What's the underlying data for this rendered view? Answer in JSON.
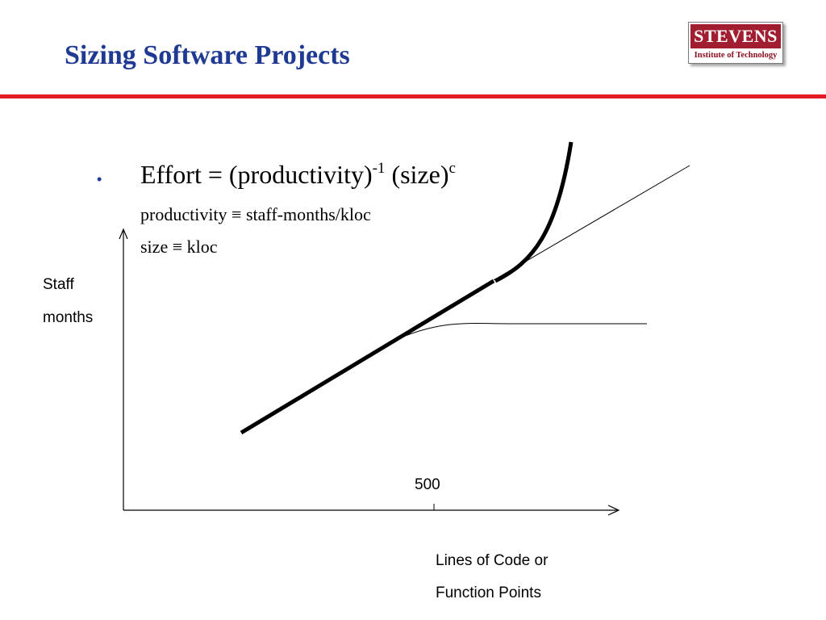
{
  "slide": {
    "title": "Sizing Software Projects"
  },
  "logo": {
    "name": "STEVENS",
    "subtitle": "Institute of Technology",
    "colors": {
      "primary": "#a01e2f"
    }
  },
  "colors": {
    "title": "#1f3a93",
    "accent_bar": "#e31b23"
  },
  "bullet": {
    "marker": "•",
    "equation_prefix": "Effort = (productivity)",
    "exponent_1": "-1",
    "equation_middle": " (size)",
    "exponent_2": "c",
    "definitions": [
      "productivity ≡ staff-months/kloc",
      "size ≡ kloc"
    ]
  },
  "diagram": {
    "y_label_lines": [
      "Staff",
      "months"
    ],
    "x_label_lines": [
      "Lines of Code or",
      "Function Points"
    ],
    "x_tick_label": "500"
  }
}
